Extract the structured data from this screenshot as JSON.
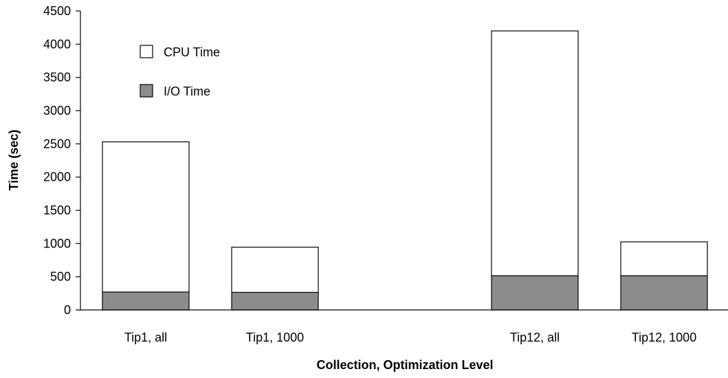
{
  "chart_data": {
    "type": "bar",
    "stacked": true,
    "categories": [
      "Tip1, all",
      "Tip1, 1000",
      "Tip12, all",
      "Tip12, 1000"
    ],
    "series": [
      {
        "name": "I/O Time",
        "values": [
          270,
          265,
          515,
          515
        ],
        "color": "#8c8c8c"
      },
      {
        "name": "CPU Time",
        "values": [
          2260,
          680,
          3685,
          510
        ],
        "color": "#ffffff"
      }
    ],
    "totals": [
      2530,
      945,
      4200,
      1025
    ],
    "xlabel": "Collection, Optimization Level",
    "ylabel": "Time (sec)",
    "ylim": [
      0,
      4500
    ],
    "yticks": [
      0,
      500,
      1000,
      1500,
      2000,
      2500,
      3000,
      3500,
      4000,
      4500
    ],
    "grid": false,
    "legend": {
      "placement": "top-left",
      "entries": [
        {
          "label": "CPU Time",
          "color": "#ffffff"
        },
        {
          "label": "I/O Time",
          "color": "#8c8c8c"
        }
      ]
    }
  }
}
